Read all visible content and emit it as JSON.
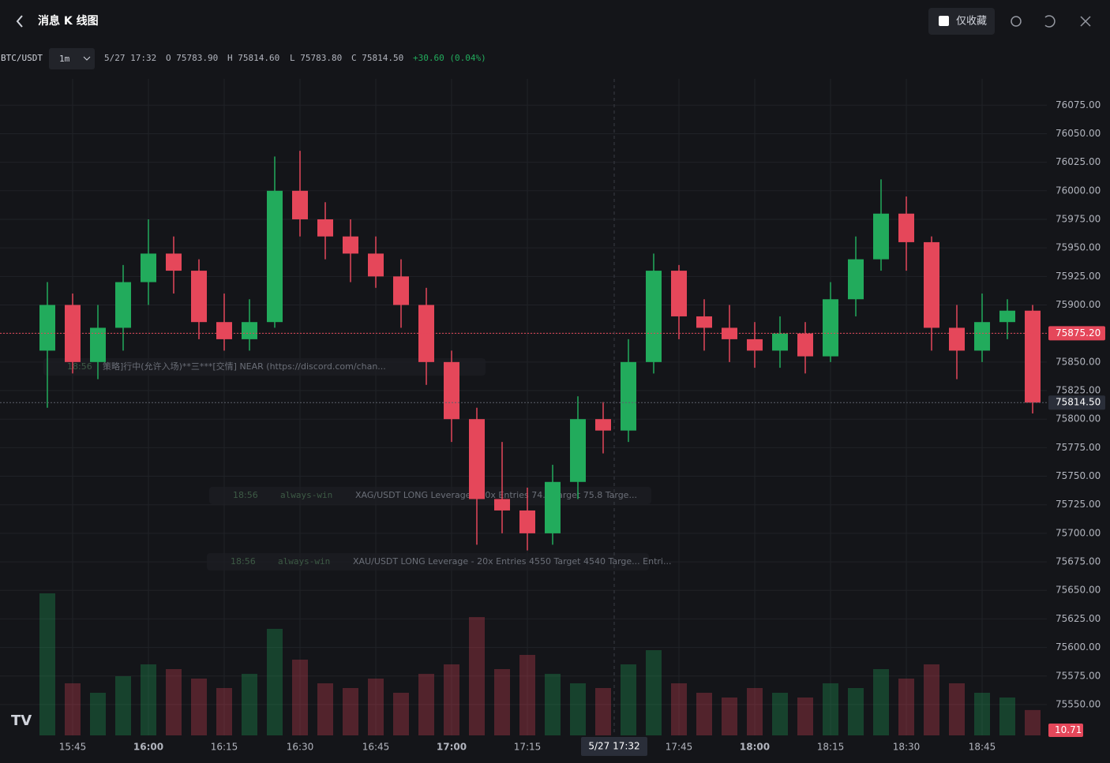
{
  "header": {
    "title": "消息 K 线图",
    "favorites_only": "仅收藏"
  },
  "legend": {
    "symbol": "BTC/USDT",
    "interval": "1m",
    "time": "5/27 17:32",
    "open": "O 75783.90",
    "high": "H 75814.60",
    "low": "L 75783.80",
    "close": "C 75814.50",
    "change": "+30.60 (0.04%)"
  },
  "overlays": [
    {
      "time": "18:56",
      "text": "策略]行中(允许入场)**三***[交情] NEAR (https://discord.com/chan..."
    },
    {
      "time": "18:56",
      "user": "always-win",
      "text": "XAG/USDT LONG  Leverage - 20x Entries 74.4 Target 75.8 Targe..."
    },
    {
      "time": "18:56",
      "user": "always-win",
      "text": "XAU/USDT LONG  Leverage - 20x Entries 4550 Target 4540 Targe... Entri..."
    }
  ],
  "chart_data": {
    "type": "candlestick",
    "categories": [
      null,
      "15:45",
      null,
      null,
      "16:00",
      null,
      null,
      "16:15",
      null,
      null,
      "16:30",
      null,
      null,
      "16:45",
      null,
      null,
      "17:00",
      null,
      null,
      "17:15",
      null,
      null,
      null,
      null,
      null,
      "17:45",
      null,
      null,
      "18:00",
      null,
      null,
      "18:15",
      null,
      null,
      "18:30",
      null,
      null,
      "18:45",
      null,
      null
    ],
    "open": [
      75860,
      75900,
      75850,
      75880,
      75920,
      75945,
      75930,
      75885,
      75870,
      75885,
      76000,
      75975,
      75960,
      75945,
      75925,
      75900,
      75850,
      75800,
      75730,
      75720,
      75700,
      75745,
      75800,
      75790,
      75850,
      75930,
      75890,
      75880,
      75870,
      75860,
      75875,
      75855,
      75905,
      75940,
      75980,
      75955,
      75880,
      75860,
      75885,
      75895
    ],
    "high": [
      75920,
      75910,
      75900,
      75935,
      75975,
      75960,
      75940,
      75910,
      75905,
      76030,
      76035,
      75990,
      75975,
      75960,
      75940,
      75915,
      75860,
      75810,
      75780,
      75740,
      75760,
      75820,
      75815,
      75870,
      75945,
      75935,
      75905,
      75900,
      75885,
      75890,
      75885,
      75920,
      75960,
      76010,
      75995,
      75960,
      75900,
      75910,
      75905,
      75900
    ],
    "low": [
      75810,
      75840,
      75835,
      75860,
      75900,
      75910,
      75870,
      75860,
      75860,
      75880,
      75960,
      75940,
      75920,
      75915,
      75880,
      75830,
      75780,
      75690,
      75700,
      75685,
      75690,
      75730,
      75770,
      75780,
      75840,
      75870,
      75860,
      75850,
      75845,
      75845,
      75840,
      75850,
      75890,
      75930,
      75930,
      75860,
      75835,
      75850,
      75870,
      75805
    ],
    "close": [
      75900,
      75850,
      75880,
      75920,
      75945,
      75930,
      75885,
      75870,
      75885,
      76000,
      75975,
      75960,
      75945,
      75925,
      75900,
      75850,
      75800,
      75730,
      75720,
      75700,
      75745,
      75800,
      75790,
      75850,
      75930,
      75890,
      75880,
      75870,
      75860,
      75875,
      75855,
      75905,
      75940,
      75980,
      75955,
      75880,
      75860,
      75885,
      75895,
      75814.5
    ],
    "volume": [
      60,
      22,
      18,
      25,
      30,
      28,
      24,
      20,
      26,
      45,
      32,
      22,
      20,
      24,
      18,
      26,
      30,
      50,
      28,
      34,
      26,
      22,
      20,
      30,
      36,
      22,
      18,
      16,
      20,
      18,
      16,
      22,
      20,
      28,
      24,
      30,
      22,
      18,
      16,
      10.71
    ],
    "up_color": "#22ab5c",
    "down_color": "#e5475a",
    "ylim": [
      75523,
      76098
    ],
    "yticks": [
      {
        "value": 75550,
        "label": "75550.00"
      },
      {
        "value": 75575,
        "label": "75575.00"
      },
      {
        "value": 75600,
        "label": "75600.00"
      },
      {
        "value": 75625,
        "label": "75625.00"
      },
      {
        "value": 75650,
        "label": "75650.00"
      },
      {
        "value": 75675,
        "label": "75675.00"
      },
      {
        "value": 75700,
        "label": "75700.00"
      },
      {
        "value": 75725,
        "label": "75725.00"
      },
      {
        "value": 75750,
        "label": "75750.00"
      },
      {
        "value": 75775,
        "label": "75775.00"
      },
      {
        "value": 75800,
        "label": "75800.00"
      },
      {
        "value": 75825,
        "label": "75825.00"
      },
      {
        "value": 75850,
        "label": "75850.00"
      },
      {
        "value": 75875,
        "label": "75875.00"
      },
      {
        "value": 75900,
        "label": "75900.00"
      },
      {
        "value": 75925,
        "label": "75925.00"
      },
      {
        "value": 75950,
        "label": "75950.00"
      },
      {
        "value": 75975,
        "label": "75975.00"
      },
      {
        "value": 76000,
        "label": "76000.00"
      },
      {
        "value": 76025,
        "label": "76025.00"
      },
      {
        "value": 76050,
        "label": "76050.00"
      },
      {
        "value": 76075,
        "label": "76075.00"
      }
    ],
    "grid": true,
    "price_markers": [
      {
        "value": 75875.2,
        "label": "75875.20",
        "color": "#e5475a"
      },
      {
        "value": 75814.5,
        "label": "75814.50",
        "color": "#2a2e39"
      }
    ],
    "crosshair_label": "5/27 17:32",
    "last_volume": 10.71
  }
}
